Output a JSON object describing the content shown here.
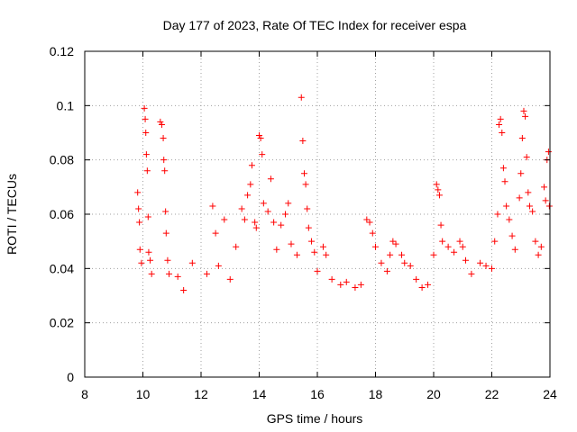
{
  "chart_data": {
    "type": "scatter",
    "title": "Day 177 of 2023, Rate Of TEC Index for receiver espa",
    "xlabel": "GPS time / hours",
    "ylabel": "ROTI / TECUs",
    "xlim": [
      8,
      24
    ],
    "ylim": [
      0,
      0.12
    ],
    "xticks": [
      8,
      10,
      12,
      14,
      16,
      18,
      20,
      22,
      24
    ],
    "xtick_labels": [
      "8",
      "10",
      "12",
      "14",
      "16",
      "18",
      "20",
      "22",
      "24"
    ],
    "yticks": [
      0,
      0.02,
      0.04,
      0.06,
      0.08,
      0.1,
      0.12
    ],
    "ytick_labels": [
      "0",
      "0.02",
      "0.04",
      "0.06",
      "0.08",
      "0.1",
      "0.12"
    ],
    "grid": true,
    "marker": "+",
    "color": "#ff0000",
    "series": [
      {
        "name": "ROTI",
        "points": [
          [
            9.82,
            0.068
          ],
          [
            9.85,
            0.062
          ],
          [
            9.88,
            0.057
          ],
          [
            9.9,
            0.047
          ],
          [
            9.95,
            0.042
          ],
          [
            10.05,
            0.099
          ],
          [
            10.08,
            0.095
          ],
          [
            10.1,
            0.09
          ],
          [
            10.12,
            0.082
          ],
          [
            10.15,
            0.076
          ],
          [
            10.18,
            0.059
          ],
          [
            10.2,
            0.046
          ],
          [
            10.25,
            0.043
          ],
          [
            10.3,
            0.038
          ],
          [
            10.6,
            0.094
          ],
          [
            10.65,
            0.093
          ],
          [
            10.7,
            0.088
          ],
          [
            10.72,
            0.08
          ],
          [
            10.75,
            0.076
          ],
          [
            10.78,
            0.061
          ],
          [
            10.8,
            0.053
          ],
          [
            10.85,
            0.043
          ],
          [
            10.9,
            0.038
          ],
          [
            11.2,
            0.037
          ],
          [
            11.4,
            0.032
          ],
          [
            11.7,
            0.042
          ],
          [
            12.2,
            0.038
          ],
          [
            12.4,
            0.063
          ],
          [
            12.5,
            0.053
          ],
          [
            12.6,
            0.041
          ],
          [
            12.8,
            0.058
          ],
          [
            13.0,
            0.036
          ],
          [
            13.2,
            0.048
          ],
          [
            13.4,
            0.062
          ],
          [
            13.5,
            0.058
          ],
          [
            13.6,
            0.067
          ],
          [
            13.7,
            0.071
          ],
          [
            13.75,
            0.078
          ],
          [
            13.85,
            0.057
          ],
          [
            13.9,
            0.055
          ],
          [
            14.0,
            0.089
          ],
          [
            14.05,
            0.088
          ],
          [
            14.1,
            0.082
          ],
          [
            14.15,
            0.064
          ],
          [
            14.3,
            0.061
          ],
          [
            14.4,
            0.073
          ],
          [
            14.5,
            0.057
          ],
          [
            14.6,
            0.047
          ],
          [
            14.75,
            0.056
          ],
          [
            14.9,
            0.06
          ],
          [
            15.0,
            0.064
          ],
          [
            15.1,
            0.049
          ],
          [
            15.3,
            0.045
          ],
          [
            15.45,
            0.103
          ],
          [
            15.5,
            0.087
          ],
          [
            15.55,
            0.075
          ],
          [
            15.6,
            0.071
          ],
          [
            15.65,
            0.062
          ],
          [
            15.7,
            0.055
          ],
          [
            15.8,
            0.05
          ],
          [
            15.9,
            0.046
          ],
          [
            16.0,
            0.039
          ],
          [
            16.2,
            0.048
          ],
          [
            16.3,
            0.045
          ],
          [
            16.5,
            0.036
          ],
          [
            16.8,
            0.034
          ],
          [
            17.0,
            0.035
          ],
          [
            17.3,
            0.033
          ],
          [
            17.5,
            0.034
          ],
          [
            17.7,
            0.058
          ],
          [
            17.8,
            0.057
          ],
          [
            17.9,
            0.053
          ],
          [
            18.0,
            0.048
          ],
          [
            18.2,
            0.042
          ],
          [
            18.4,
            0.039
          ],
          [
            18.5,
            0.045
          ],
          [
            18.6,
            0.05
          ],
          [
            18.7,
            0.049
          ],
          [
            18.9,
            0.045
          ],
          [
            19.0,
            0.042
          ],
          [
            19.2,
            0.041
          ],
          [
            19.4,
            0.036
          ],
          [
            19.6,
            0.033
          ],
          [
            19.8,
            0.034
          ],
          [
            20.0,
            0.045
          ],
          [
            20.1,
            0.071
          ],
          [
            20.15,
            0.069
          ],
          [
            20.2,
            0.067
          ],
          [
            20.25,
            0.056
          ],
          [
            20.3,
            0.05
          ],
          [
            20.5,
            0.048
          ],
          [
            20.7,
            0.046
          ],
          [
            20.9,
            0.05
          ],
          [
            21.0,
            0.048
          ],
          [
            21.1,
            0.043
          ],
          [
            21.3,
            0.038
          ],
          [
            21.6,
            0.042
          ],
          [
            21.8,
            0.041
          ],
          [
            22.0,
            0.04
          ],
          [
            22.1,
            0.05
          ],
          [
            22.2,
            0.06
          ],
          [
            22.25,
            0.093
          ],
          [
            22.3,
            0.095
          ],
          [
            22.35,
            0.09
          ],
          [
            22.4,
            0.077
          ],
          [
            22.45,
            0.072
          ],
          [
            22.5,
            0.063
          ],
          [
            22.6,
            0.058
          ],
          [
            22.7,
            0.052
          ],
          [
            22.8,
            0.047
          ],
          [
            22.95,
            0.066
          ],
          [
            23.0,
            0.075
          ],
          [
            23.05,
            0.088
          ],
          [
            23.1,
            0.098
          ],
          [
            23.15,
            0.096
          ],
          [
            23.2,
            0.081
          ],
          [
            23.25,
            0.068
          ],
          [
            23.3,
            0.063
          ],
          [
            23.4,
            0.061
          ],
          [
            23.5,
            0.05
          ],
          [
            23.6,
            0.045
          ],
          [
            23.7,
            0.048
          ],
          [
            23.8,
            0.07
          ],
          [
            23.85,
            0.065
          ],
          [
            23.9,
            0.08
          ],
          [
            23.95,
            0.083
          ],
          [
            23.98,
            0.063
          ]
        ]
      }
    ]
  }
}
